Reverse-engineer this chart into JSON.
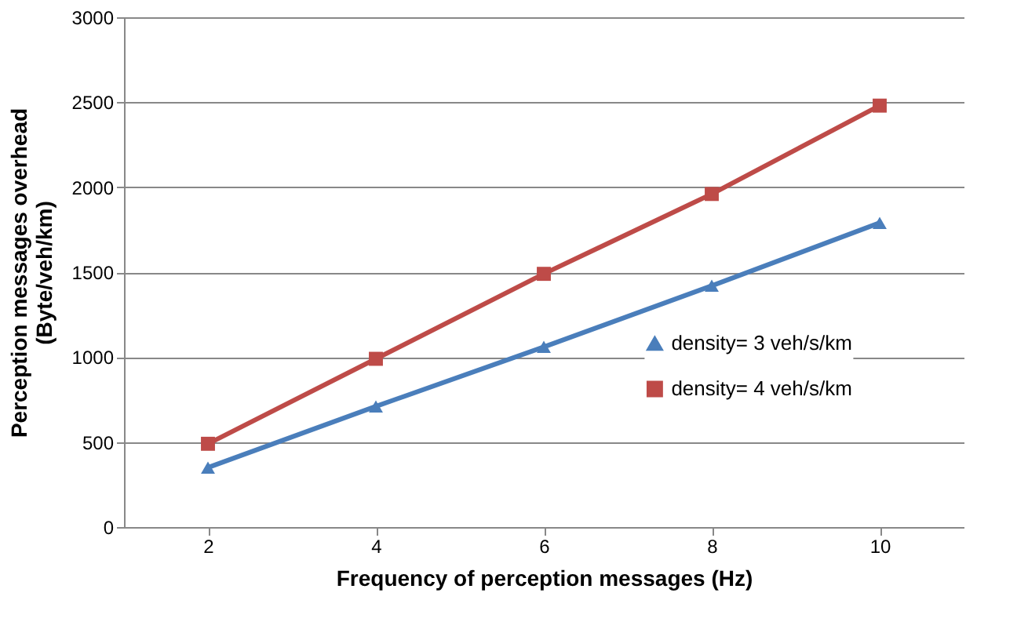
{
  "chart_data": {
    "type": "line",
    "xlabel": "Frequency of perception messages (Hz)",
    "ylabel": "Perception messages overhead\n(Byte/veh/km)",
    "categories": [
      "2",
      "4",
      "6",
      "8",
      "10"
    ],
    "series": [
      {
        "name": "density= 3 veh/s/km",
        "color": "#4a7ebb",
        "marker": "triangle",
        "values": [
          350,
          710,
          1060,
          1420,
          1790
        ]
      },
      {
        "name": "density= 4 veh/s/km",
        "color": "#be4b48",
        "marker": "square",
        "values": [
          490,
          990,
          1490,
          1960,
          2480
        ]
      }
    ],
    "ylim": [
      0,
      3000
    ],
    "yticks": [
      0,
      500,
      1000,
      1500,
      2000,
      2500,
      3000
    ],
    "grid": "y",
    "legend": "bottom right",
    "line_style": "solid"
  }
}
